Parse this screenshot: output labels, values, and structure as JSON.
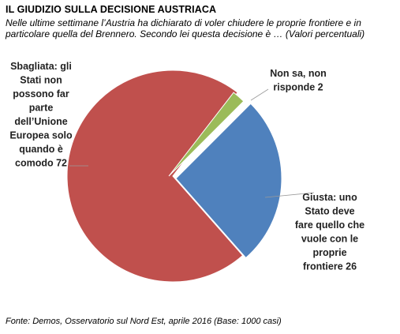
{
  "header": {
    "title": "IL GIUDIZIO SULLA DECISIONE AUSTRIACA",
    "subtitle": "Nelle ultime settimane l’Austria ha dichiarato di voler chiudere le proprie frontiere e in particolare quella del Brennero. Secondo lei questa decisione è … (Valori percentuali)"
  },
  "footer": {
    "source": "Fonte: Demos, Osservatorio sul Nord Est, aprile 2016 (Base: 1000 casi)"
  },
  "chart_data": {
    "type": "pie",
    "exploded": true,
    "legend": "none",
    "slices": [
      {
        "key": "giusta",
        "label": "Giusta: uno Stato deve fare quello che vuole con le proprie frontiere 26",
        "lines": [
          "Giusta: uno",
          "Stato deve",
          "fare quello che",
          "vuole con le",
          "proprie",
          "frontiere 26"
        ],
        "value": 26,
        "color": "#4f81bd"
      },
      {
        "key": "sbagliata",
        "label": "Sbagliata: gli Stati non possono far parte dell’Unione Europea solo quando è comodo 72",
        "lines": [
          "Sbagliata: gli",
          "Stati non",
          "possono far",
          "parte",
          "dell’Unione",
          "Europea solo",
          "quando è",
          "comodo 72"
        ],
        "value": 72,
        "color": "#c0504d"
      },
      {
        "key": "non-sa",
        "label": "Non sa, non risponde 2",
        "lines": [
          "Non sa, non",
          "risponde 2"
        ],
        "value": 2,
        "color": "#9bbb59"
      }
    ]
  }
}
